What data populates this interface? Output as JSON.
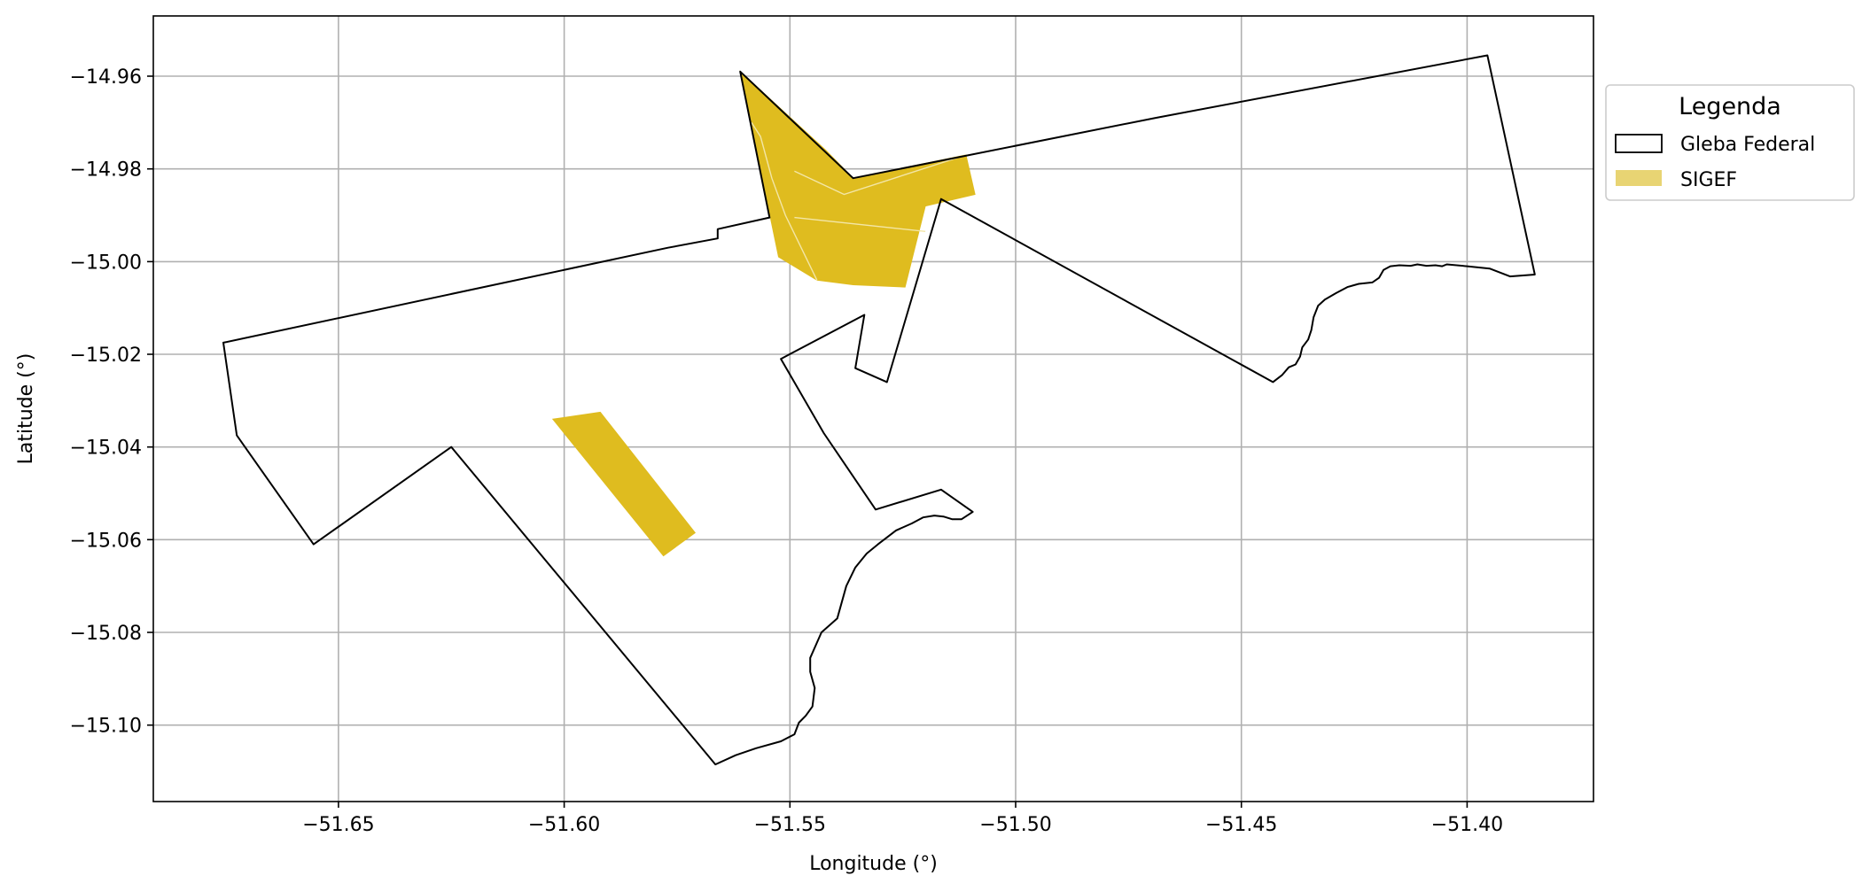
{
  "chart_data": {
    "type": "map",
    "xlabel": "Longitude (°)",
    "ylabel": "Latitude (°)",
    "xlim": [
      -51.691,
      -51.372
    ],
    "ylim": [
      -15.1165,
      -14.947
    ],
    "xticks": [
      -51.65,
      -51.6,
      -51.55,
      -51.5,
      -51.45,
      -51.4
    ],
    "xtick_labels": [
      "−51.65",
      "−51.60",
      "−51.55",
      "−51.50",
      "−51.45",
      "−51.40"
    ],
    "yticks": [
      -14.96,
      -14.98,
      -15.0,
      -15.02,
      -15.04,
      -15.06,
      -15.08,
      -15.1
    ],
    "ytick_labels": [
      "−14.96",
      "−14.98",
      "−15.00",
      "−15.02",
      "−15.04",
      "−15.06",
      "−15.08",
      "−15.10"
    ],
    "grid": true,
    "legend": {
      "title": "Legenda",
      "placement": "outside-right-top",
      "entries": [
        {
          "label": "Gleba Federal",
          "style": "outline",
          "color": "#000000"
        },
        {
          "label": "SIGEF",
          "style": "fill",
          "color": "#E8D473"
        }
      ]
    },
    "series": [
      {
        "name": "Gleba Federal",
        "kind": "outline",
        "color": "#000000",
        "polygons": [
          [
            [
              -51.6755,
              -15.0175
            ],
            [
              -51.6725,
              -15.0375
            ],
            [
              -51.6555,
              -15.061
            ],
            [
              -51.625,
              -15.04
            ],
            [
              -51.5665,
              -15.1085
            ],
            [
              -51.562,
              -15.1065
            ],
            [
              -51.5575,
              -15.105
            ],
            [
              -51.552,
              -15.1035
            ],
            [
              -51.549,
              -15.102
            ],
            [
              -51.548,
              -15.0995
            ],
            [
              -51.5465,
              -15.098
            ],
            [
              -51.545,
              -15.096
            ],
            [
              -51.5445,
              -15.092
            ],
            [
              -51.5455,
              -15.0885
            ],
            [
              -51.5455,
              -15.0855
            ],
            [
              -51.543,
              -15.08
            ],
            [
              -51.5395,
              -15.077
            ],
            [
              -51.5375,
              -15.07
            ],
            [
              -51.5355,
              -15.066
            ],
            [
              -51.533,
              -15.063
            ],
            [
              -51.5305,
              -15.061
            ],
            [
              -51.5265,
              -15.058
            ],
            [
              -51.523,
              -15.0565
            ],
            [
              -51.5205,
              -15.0552
            ],
            [
              -51.518,
              -15.0548
            ],
            [
              -51.516,
              -15.055
            ],
            [
              -51.514,
              -15.0556
            ],
            [
              -51.512,
              -15.0556
            ],
            [
              -51.5095,
              -15.054
            ],
            [
              -51.5165,
              -15.0492
            ],
            [
              -51.531,
              -15.0535
            ],
            [
              -51.5425,
              -15.037
            ],
            [
              -51.552,
              -15.021
            ],
            [
              -51.5335,
              -15.0115
            ],
            [
              -51.5355,
              -15.023
            ],
            [
              -51.5285,
              -15.026
            ],
            [
              -51.5165,
              -14.9865
            ],
            [
              -51.443,
              -15.026
            ],
            [
              -51.441,
              -15.0245
            ],
            [
              -51.4395,
              -15.0228
            ],
            [
              -51.438,
              -15.0222
            ],
            [
              -51.437,
              -15.0205
            ],
            [
              -51.4365,
              -15.0185
            ],
            [
              -51.4352,
              -15.0168
            ],
            [
              -51.4345,
              -15.0148
            ],
            [
              -51.434,
              -15.012
            ],
            [
              -51.433,
              -15.0095
            ],
            [
              -51.4315,
              -15.0082
            ],
            [
              -51.429,
              -15.0068
            ],
            [
              -51.4265,
              -15.0055
            ],
            [
              -51.424,
              -15.0048
            ],
            [
              -51.421,
              -15.0045
            ],
            [
              -51.4195,
              -15.0035
            ],
            [
              -51.4185,
              -15.0018
            ],
            [
              -51.417,
              -15.001
            ],
            [
              -51.415,
              -15.0008
            ],
            [
              -51.4125,
              -15.0009
            ],
            [
              -51.411,
              -15.0006
            ],
            [
              -51.409,
              -15.0009
            ],
            [
              -51.407,
              -15.0008
            ],
            [
              -51.4055,
              -15.001
            ],
            [
              -51.4045,
              -15.0006
            ],
            [
              -51.4,
              -15.001
            ],
            [
              -51.395,
              -15.0015
            ],
            [
              -51.3905,
              -15.0032
            ],
            [
              -51.385,
              -15.0028
            ],
            [
              -51.3955,
              -14.9555
            ],
            [
              -51.469,
              -14.969
            ],
            [
              -51.536,
              -14.982
            ],
            [
              -51.561,
              -14.959
            ],
            [
              -51.5545,
              -14.9905
            ],
            [
              -51.566,
              -14.993
            ],
            [
              -51.566,
              -14.995
            ],
            [
              -51.577,
              -14.997
            ],
            [
              -51.6755,
              -15.0175
            ]
          ]
        ]
      },
      {
        "name": "SIGEF",
        "kind": "fill",
        "color": "#DFBC1F",
        "polygons": [
          [
            [
              -51.561,
              -14.959
            ],
            [
              -51.542,
              -14.976
            ],
            [
              -51.536,
              -14.982
            ],
            [
              -51.511,
              -14.977
            ],
            [
              -51.509,
              -14.9855
            ],
            [
              -51.52,
              -14.988
            ],
            [
              -51.5245,
              -15.0055
            ],
            [
              -51.536,
              -15.005
            ],
            [
              -51.544,
              -15.004
            ],
            [
              -51.5525,
              -14.999
            ]
          ],
          [
            [
              -51.6025,
              -15.034
            ],
            [
              -51.592,
              -15.0325
            ],
            [
              -51.571,
              -15.0585
            ],
            [
              -51.578,
              -15.0635
            ]
          ]
        ],
        "internal_lines": [
          [
            [
              -51.5585,
              -14.97
            ],
            [
              -51.5565,
              -14.973
            ],
            [
              -51.554,
              -14.982
            ],
            [
              -51.551,
              -14.99
            ],
            [
              -51.544,
              -15.004
            ]
          ],
          [
            [
              -51.549,
              -14.9805
            ],
            [
              -51.538,
              -14.9855
            ],
            [
              -51.511,
              -14.977
            ]
          ],
          [
            [
              -51.549,
              -14.9905
            ],
            [
              -51.52,
              -14.9935
            ]
          ]
        ]
      }
    ]
  }
}
